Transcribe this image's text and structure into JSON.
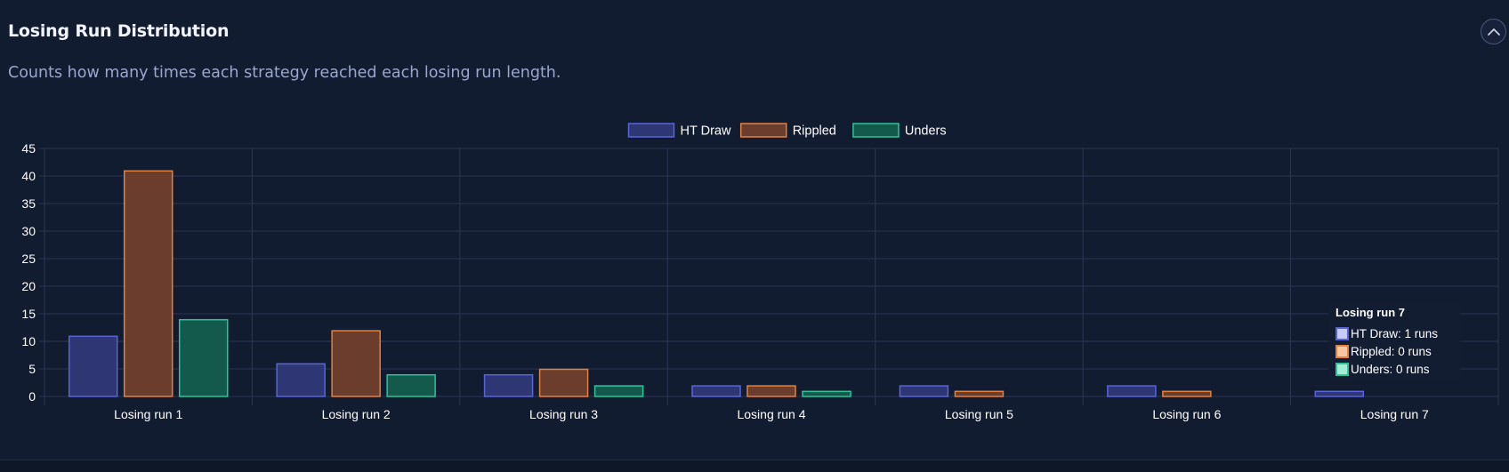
{
  "panel": {
    "title": "Losing Run Distribution",
    "subtitle": "Counts how many times each strategy reached each losing run length.",
    "collapse_icon": "chevron-up-icon"
  },
  "colors": {
    "background": "#121c31",
    "grid": "#2a3550",
    "tick_text": "#ffffff",
    "series": [
      {
        "fill": "#2e3774",
        "border": "#5a64d9"
      },
      {
        "fill": "#6a3d2c",
        "border": "#e3823f"
      },
      {
        "fill": "#145a4c",
        "border": "#2fc39a"
      }
    ]
  },
  "chart_data": {
    "type": "bar",
    "title": "",
    "xlabel": "",
    "ylabel": "",
    "categories": [
      "Losing run 1",
      "Losing run 2",
      "Losing run 3",
      "Losing run 4",
      "Losing run 5",
      "Losing run 6",
      "Losing run 7"
    ],
    "series": [
      {
        "name": "HT Draw",
        "values": [
          11,
          6,
          4,
          2,
          2,
          2,
          1
        ]
      },
      {
        "name": "Rippled",
        "values": [
          41,
          12,
          5,
          2,
          1,
          1,
          0
        ]
      },
      {
        "name": "Unders",
        "values": [
          14,
          4,
          2,
          1,
          0,
          0,
          0
        ]
      }
    ],
    "ylim": [
      0,
      45
    ],
    "yticks": [
      0,
      5,
      10,
      15,
      20,
      25,
      30,
      35,
      40,
      45
    ],
    "grid": true,
    "legend_position": "top-center"
  },
  "tooltip": {
    "title": "Losing run 7",
    "rows": [
      "HT Draw: 1 runs",
      "Rippled: 0 runs",
      "Unders: 0 runs"
    ],
    "active_category": "Losing run 7"
  }
}
